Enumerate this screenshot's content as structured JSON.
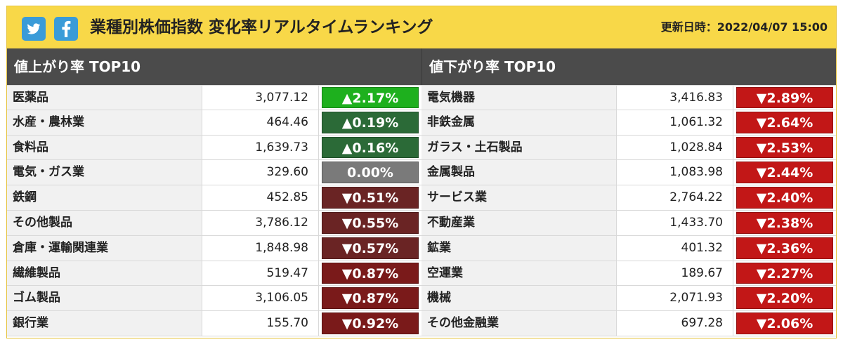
{
  "header": {
    "title": "業種別株価指数 変化率リアルタイムランキング",
    "updated": "更新日時：2022/04/07 15:00",
    "sns": [
      {
        "name": "twitter-icon",
        "color": "#3a9bd8"
      },
      {
        "name": "facebook-icon",
        "color": "#3a9bd8"
      }
    ]
  },
  "gainers": {
    "title": "値上がり率 TOP10",
    "rows": [
      {
        "name": "医薬品",
        "value": "3,077.12",
        "change": "▲2.17%",
        "color": "#1eb01e"
      },
      {
        "name": "水産・農林業",
        "value": "464.46",
        "change": "▲0.19%",
        "color": "#2b6a37"
      },
      {
        "name": "食料品",
        "value": "1,639.73",
        "change": "▲0.16%",
        "color": "#2b6a37"
      },
      {
        "name": "電気・ガス業",
        "value": "329.60",
        "change": "0.00%",
        "color": "#7a7a7a"
      },
      {
        "name": "鉄鋼",
        "value": "452.85",
        "change": "▼0.51%",
        "color": "#6a2424"
      },
      {
        "name": "その他製品",
        "value": "3,786.12",
        "change": "▼0.55%",
        "color": "#6a2424"
      },
      {
        "name": "倉庫・運輸関連業",
        "value": "1,848.98",
        "change": "▼0.57%",
        "color": "#6a2424"
      },
      {
        "name": "繊維製品",
        "value": "519.47",
        "change": "▼0.87%",
        "color": "#7a1a1a"
      },
      {
        "name": "ゴム製品",
        "value": "3,106.05",
        "change": "▼0.87%",
        "color": "#7a1a1a"
      },
      {
        "name": "銀行業",
        "value": "155.70",
        "change": "▼0.92%",
        "color": "#7a1a1a"
      }
    ]
  },
  "losers": {
    "title": "値下がり率 TOP10",
    "rows": [
      {
        "name": "電気機器",
        "value": "3,416.83",
        "change": "▼2.89%",
        "color": "#c21717"
      },
      {
        "name": "非鉄金属",
        "value": "1,061.32",
        "change": "▼2.64%",
        "color": "#c21717"
      },
      {
        "name": "ガラス・土石製品",
        "value": "1,028.84",
        "change": "▼2.53%",
        "color": "#c21717"
      },
      {
        "name": "金属製品",
        "value": "1,083.98",
        "change": "▼2.44%",
        "color": "#c21717"
      },
      {
        "name": "サービス業",
        "value": "2,764.22",
        "change": "▼2.40%",
        "color": "#c21717"
      },
      {
        "name": "不動産業",
        "value": "1,433.70",
        "change": "▼2.38%",
        "color": "#c21717"
      },
      {
        "name": "鉱業",
        "value": "401.32",
        "change": "▼2.36%",
        "color": "#c21717"
      },
      {
        "name": "空運業",
        "value": "189.67",
        "change": "▼2.27%",
        "color": "#c21717"
      },
      {
        "name": "機械",
        "value": "2,071.93",
        "change": "▼2.20%",
        "color": "#c21717"
      },
      {
        "name": "その他金融業",
        "value": "697.28",
        "change": "▼2.06%",
        "color": "#c21717"
      }
    ]
  }
}
